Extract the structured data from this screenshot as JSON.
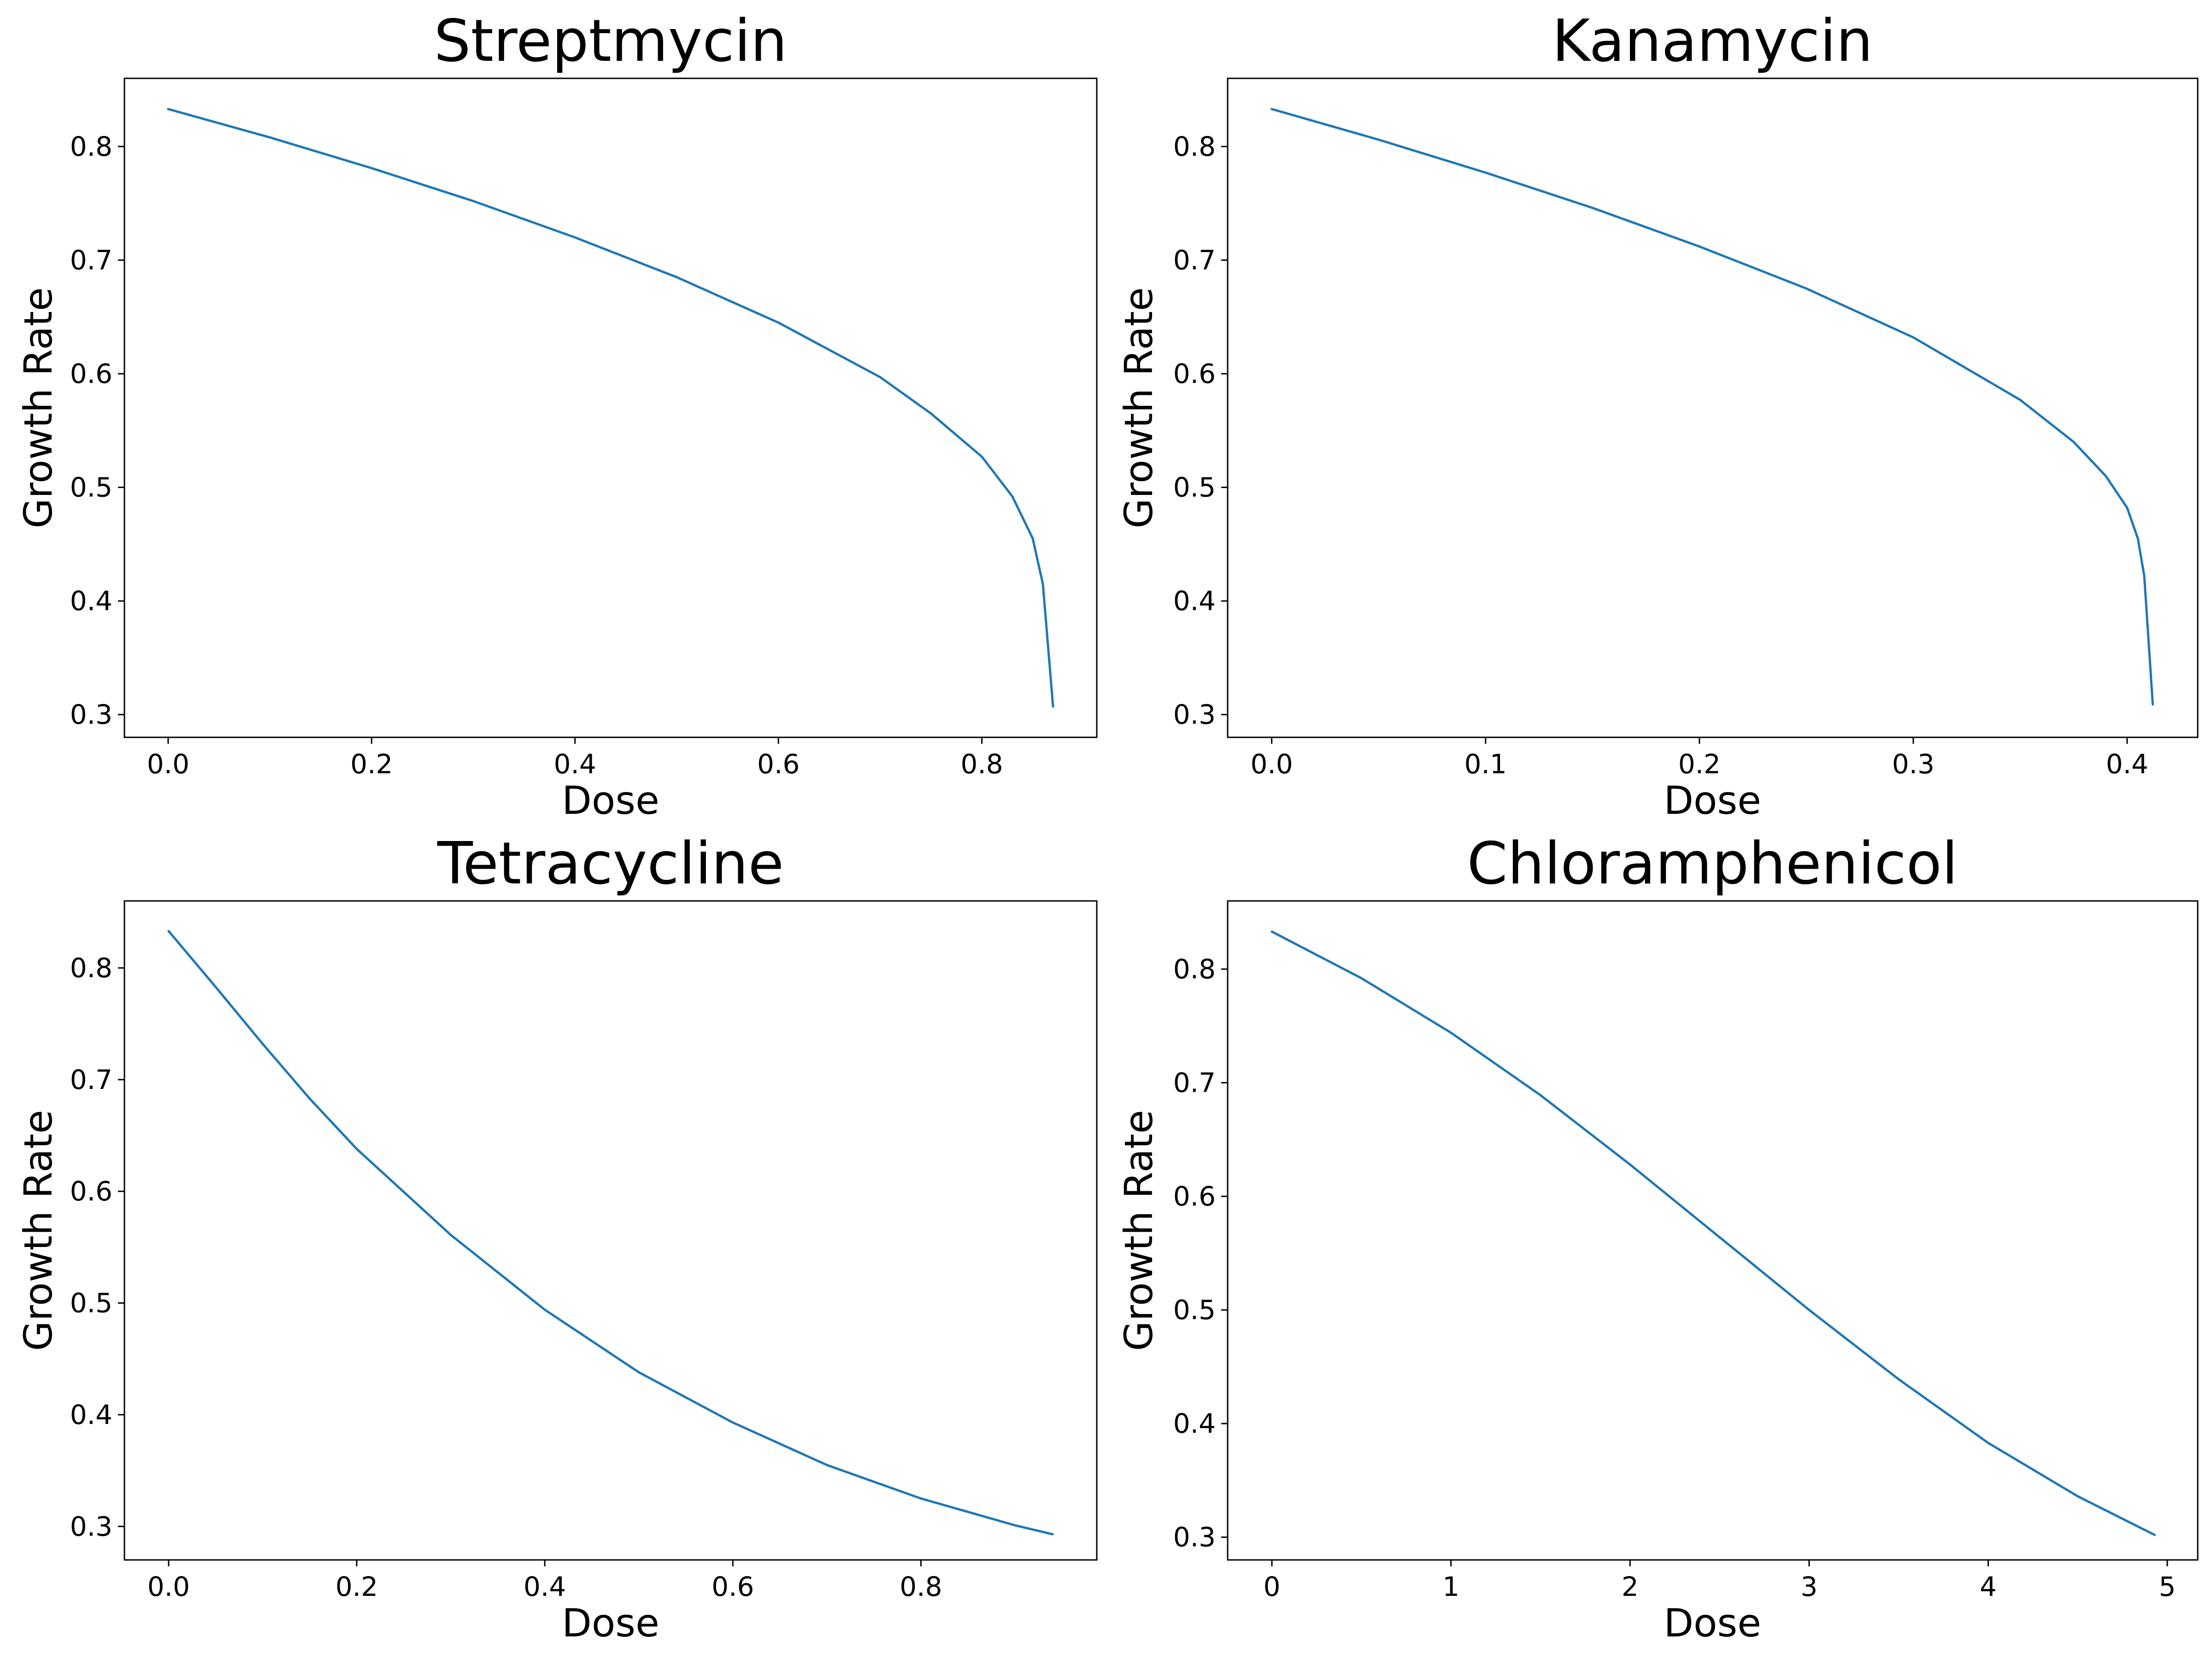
{
  "chart_data": [
    {
      "type": "line",
      "title": "Streptmycin",
      "xlabel": "Dose",
      "ylabel": "Growth Rate",
      "xlim": [
        -0.043,
        0.913
      ],
      "ylim": [
        0.28,
        0.86
      ],
      "xticks": [
        0.0,
        0.2,
        0.4,
        0.6,
        0.8
      ],
      "xtick_labels": [
        "0.0",
        "0.2",
        "0.4",
        "0.6",
        "0.8"
      ],
      "yticks": [
        0.3,
        0.4,
        0.5,
        0.6,
        0.7,
        0.8
      ],
      "ytick_labels": [
        "0.3",
        "0.4",
        "0.5",
        "0.6",
        "0.7",
        "0.8"
      ],
      "color": "#1f77b4",
      "series": [
        {
          "name": "Streptmycin",
          "x": [
            0.0,
            0.1,
            0.2,
            0.3,
            0.4,
            0.5,
            0.6,
            0.7,
            0.75,
            0.8,
            0.83,
            0.85,
            0.86,
            0.87
          ],
          "y": [
            0.833,
            0.808,
            0.781,
            0.752,
            0.72,
            0.685,
            0.645,
            0.597,
            0.565,
            0.527,
            0.492,
            0.455,
            0.415,
            0.307
          ]
        }
      ]
    },
    {
      "type": "line",
      "title": "Kanamycin",
      "xlabel": "Dose",
      "ylabel": "Growth Rate",
      "xlim": [
        -0.0206,
        0.433
      ],
      "ylim": [
        0.28,
        0.86
      ],
      "xticks": [
        0.0,
        0.1,
        0.2,
        0.3,
        0.4
      ],
      "xtick_labels": [
        "0.0",
        "0.1",
        "0.2",
        "0.3",
        "0.4"
      ],
      "yticks": [
        0.3,
        0.4,
        0.5,
        0.6,
        0.7,
        0.8
      ],
      "ytick_labels": [
        "0.3",
        "0.4",
        "0.5",
        "0.6",
        "0.7",
        "0.8"
      ],
      "color": "#1f77b4",
      "series": [
        {
          "name": "Kanamycin",
          "x": [
            0.0,
            0.05,
            0.1,
            0.15,
            0.2,
            0.25,
            0.3,
            0.35,
            0.375,
            0.39,
            0.4,
            0.405,
            0.408,
            0.412
          ],
          "y": [
            0.833,
            0.806,
            0.777,
            0.746,
            0.712,
            0.675,
            0.632,
            0.577,
            0.54,
            0.51,
            0.482,
            0.455,
            0.422,
            0.309
          ]
        }
      ]
    },
    {
      "type": "line",
      "title": "Tetracycline",
      "xlabel": "Dose",
      "ylabel": "Growth Rate",
      "xlim": [
        -0.047,
        0.987
      ],
      "ylim": [
        0.27,
        0.86
      ],
      "xticks": [
        0.0,
        0.2,
        0.4,
        0.6,
        0.8
      ],
      "xtick_labels": [
        "0.0",
        "0.2",
        "0.4",
        "0.6",
        "0.8"
      ],
      "yticks": [
        0.3,
        0.4,
        0.5,
        0.6,
        0.7,
        0.8
      ],
      "ytick_labels": [
        "0.3",
        "0.4",
        "0.5",
        "0.6",
        "0.7",
        "0.8"
      ],
      "color": "#1f77b4",
      "series": [
        {
          "name": "Tetracycline",
          "x": [
            0.0,
            0.05,
            0.1,
            0.15,
            0.2,
            0.3,
            0.4,
            0.5,
            0.6,
            0.7,
            0.8,
            0.9,
            0.94
          ],
          "y": [
            0.833,
            0.783,
            0.732,
            0.683,
            0.638,
            0.561,
            0.494,
            0.438,
            0.393,
            0.355,
            0.325,
            0.301,
            0.293
          ]
        }
      ]
    },
    {
      "type": "line",
      "title": "Chloramphenicol",
      "xlabel": "Dose",
      "ylabel": "Growth Rate",
      "xlim": [
        -0.247,
        5.17
      ],
      "ylim": [
        0.28,
        0.86
      ],
      "xticks": [
        0,
        1,
        2,
        3,
        4,
        5
      ],
      "xtick_labels": [
        "0",
        "1",
        "2",
        "3",
        "4",
        "5"
      ],
      "yticks": [
        0.3,
        0.4,
        0.5,
        0.6,
        0.7,
        0.8
      ],
      "ytick_labels": [
        "0.3",
        "0.4",
        "0.5",
        "0.6",
        "0.7",
        "0.8"
      ],
      "color": "#1f77b4",
      "series": [
        {
          "name": "Chloramphenicol",
          "x": [
            0.0,
            0.5,
            1.0,
            1.5,
            2.0,
            2.5,
            3.0,
            3.5,
            4.0,
            4.5,
            4.93
          ],
          "y": [
            0.833,
            0.792,
            0.744,
            0.689,
            0.628,
            0.564,
            0.5,
            0.439,
            0.383,
            0.336,
            0.302
          ]
        }
      ]
    }
  ]
}
